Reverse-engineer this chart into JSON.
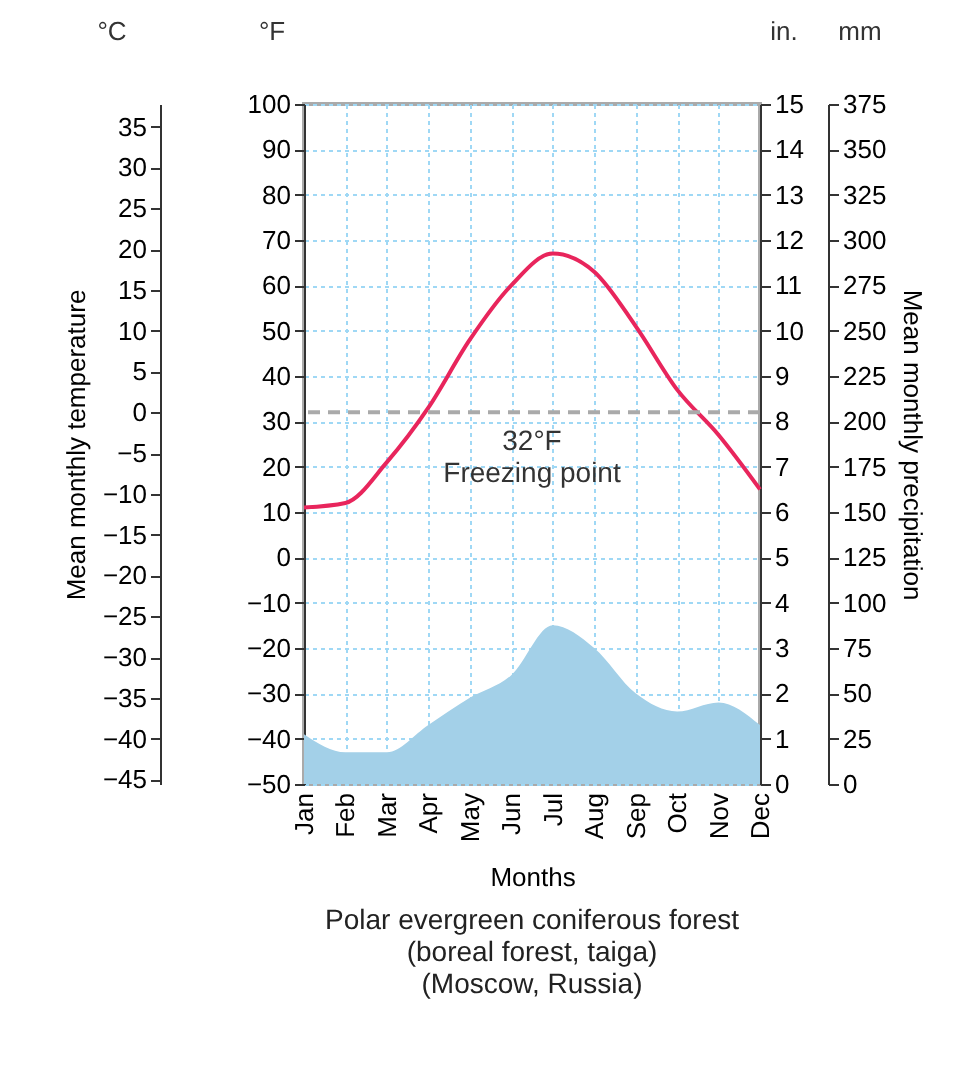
{
  "chart_data": {
    "type": "line",
    "title": "Polar evergreen coniferous forest\n(boreal forest, taiga)\n(Moscow, Russia)",
    "xlabel": "Months",
    "ylabel": "Mean monthly temperature",
    "categories": [
      "Jan",
      "Feb",
      "Mar",
      "Apr",
      "May",
      "Jun",
      "Jul",
      "Aug",
      "Sep",
      "Oct",
      "Nov",
      "Dec"
    ],
    "series": [
      {
        "type": "area",
        "axis": "y2",
        "color": "#a3d0e8",
        "values": [
          1.1,
          0.7,
          0.7,
          1.3,
          1.9,
          2.4,
          3.5,
          3.0,
          2.0,
          1.6,
          1.8,
          1.3
        ]
      },
      {
        "axis": "y",
        "color": "#e8255c",
        "values": [
          11,
          12,
          21,
          33,
          48,
          60,
          67,
          63,
          51,
          37,
          27,
          15
        ]
      }
    ],
    "ylim": [
      -50,
      100
    ],
    "yticks": [
      -50,
      -40,
      -30,
      -20,
      -10,
      0,
      10,
      20,
      30,
      40,
      50,
      60,
      70,
      80,
      90,
      100
    ],
    "y2lim": [
      0,
      15
    ],
    "y2ticks": [
      0,
      1,
      2,
      3,
      4,
      5,
      6,
      7,
      8,
      9,
      10,
      11,
      12,
      13,
      14,
      15
    ],
    "y3lim": [
      -45.56,
      37.78
    ],
    "y3ticks": [
      -45,
      -40,
      -35,
      -30,
      -25,
      -20,
      -15,
      -10,
      -5,
      0,
      5,
      10,
      15,
      20,
      25,
      30,
      35
    ],
    "ref_lines": [
      {
        "axis": "y",
        "value": 32,
        "label": "32°F\nFreezing point",
        "color": "#aaaaaa",
        "line_style": "dashed"
      }
    ],
    "annotations": [
      "°C",
      "°F",
      "in.",
      "mm",
      "Mean monthly precipitation",
      "0",
      "25",
      "50",
      "75",
      "100",
      "125",
      "150",
      "175",
      "200",
      "225",
      "250",
      "275",
      "300",
      "325",
      "350",
      "375"
    ],
    "grid": true
  }
}
